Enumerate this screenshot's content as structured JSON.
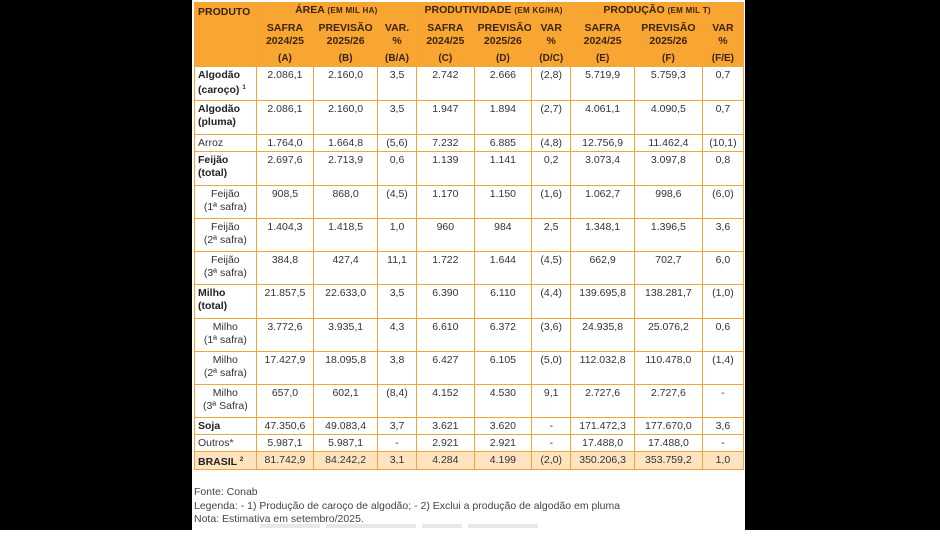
{
  "table": {
    "header": {
      "produto": "PRODUTO",
      "area": {
        "title": "ÁREA",
        "unit": "(EM MIL HA)"
      },
      "produtividade": {
        "title": "PRODUTIVIDADE",
        "unit": "(EM KG/HA)"
      },
      "producao": {
        "title": "PRODUÇÃO",
        "unit": "(EM MIL T)"
      },
      "sub": {
        "safra_l1": "SAFRA",
        "safra_l2": "2024/25",
        "prev_l1": "PREVISÃO",
        "prev_l2": "2025/26",
        "var_l1": "VAR.",
        "var_l2": "%",
        "var2_l1": "VAR",
        "var2_l2": "%"
      },
      "letters": [
        "(A)",
        "(B)",
        "(B/A)",
        "(C)",
        "(D)",
        "(D/C)",
        "(E)",
        "(F)",
        "(F/E)"
      ]
    },
    "rows": [
      {
        "l1": "Algodão",
        "l2": "(caroço)",
        "sup": "1",
        "vals": [
          "2.086,1",
          "2.160,0",
          "3,5",
          "2.742",
          "2.666",
          "(2,8)",
          "5.719,9",
          "5.759,3",
          "0,7"
        ]
      },
      {
        "l1": "Algodão",
        "l2": "(pluma)",
        "vals": [
          "2.086,1",
          "2.160,0",
          "3,5",
          "1.947",
          "1.894",
          "(2,7)",
          "4.061,1",
          "4.090,5",
          "0,7"
        ]
      },
      {
        "l1": "Arroz",
        "vals": [
          "1.764,0",
          "1.664,8",
          "(5,6)",
          "7.232",
          "6.885",
          "(4,8)",
          "12.756,9",
          "11.462,4",
          "(10,1)"
        ]
      },
      {
        "l1": "Feijão",
        "l2": "(total)",
        "vals": [
          "2.697,6",
          "2.713,9",
          "0,6",
          "1.139",
          "1.141",
          "0,2",
          "3.073,4",
          "3.097,8",
          "0,8"
        ]
      },
      {
        "l1": "Feijão",
        "l2": "(1ª safra)",
        "vals": [
          "908,5",
          "868,0",
          "(4,5)",
          "1.170",
          "1.150",
          "(1,6)",
          "1.062,7",
          "998,6",
          "(6,0)"
        ]
      },
      {
        "l1": "Feijão",
        "l2": "(2ª safra)",
        "vals": [
          "1.404,3",
          "1.418,5",
          "1,0",
          "960",
          "984",
          "2,5",
          "1.348,1",
          "1.396,5",
          "3,6"
        ]
      },
      {
        "l1": "Feijão",
        "l2": "(3ª safra)",
        "vals": [
          "384,8",
          "427,4",
          "11,1",
          "1.722",
          "1.644",
          "(4,5)",
          "662,9",
          "702,7",
          "6,0"
        ]
      },
      {
        "l1": "Milho",
        "l2": "(total)",
        "vals": [
          "21.857,5",
          "22.633,0",
          "3,5",
          "6.390",
          "6.110",
          "(4,4)",
          "139.695,8",
          "138.281,7",
          "(1,0)"
        ]
      },
      {
        "l1": "Milho",
        "l2": "(1ª safra)",
        "vals": [
          "3.772,6",
          "3.935,1",
          "4,3",
          "6.610",
          "6.372",
          "(3,6)",
          "24.935,8",
          "25.076,2",
          "0,6"
        ]
      },
      {
        "l1": "Milho",
        "l2": "(2ª safra)",
        "vals": [
          "17.427,9",
          "18.095,8",
          "3,8",
          "6.427",
          "6.105",
          "(5,0)",
          "112.032,8",
          "110.478,0",
          "(1,4)"
        ]
      },
      {
        "l1": "Milho",
        "l2": "(3ª Safra)",
        "vals": [
          "657,0",
          "602,1",
          "(8,4)",
          "4.152",
          "4.530",
          "9,1",
          "2.727,6",
          "2.727,6",
          "-"
        ]
      },
      {
        "l1": "Soja",
        "vals": [
          "47.350,6",
          "49.083,4",
          "3,7",
          "3.621",
          "3.620",
          "-",
          "171.472,3",
          "177.670,0",
          "3,6"
        ]
      },
      {
        "l1": "Outros*",
        "vals": [
          "5.987,1",
          "5.987,1",
          "-",
          "2.921",
          "2.921",
          "-",
          "17.488,0",
          "17.488,0",
          "-"
        ]
      },
      {
        "l1": "BRASIL",
        "sup": "2",
        "vals": [
          "81.742,9",
          "84.242,2",
          "3,1",
          "4.284",
          "4.199",
          "(2,0)",
          "350.206,3",
          "353.759,2",
          "1,0"
        ]
      }
    ]
  },
  "notes": {
    "fonte": "Fonte: Conab",
    "legenda": "Legenda: - 1) Produção de caroço de algodão; - 2) Exclui a produção de algodão em pluma",
    "nota": "Nota: Estimativa em setembro/2025."
  }
}
